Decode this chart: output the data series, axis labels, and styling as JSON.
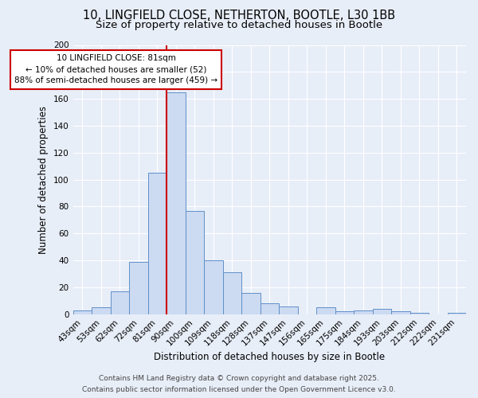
{
  "title_line1": "10, LINGFIELD CLOSE, NETHERTON, BOOTLE, L30 1BB",
  "title_line2": "Size of property relative to detached houses in Bootle",
  "xlabel": "Distribution of detached houses by size in Bootle",
  "ylabel": "Number of detached properties",
  "bar_labels": [
    "43sqm",
    "53sqm",
    "62sqm",
    "72sqm",
    "81sqm",
    "90sqm",
    "100sqm",
    "109sqm",
    "118sqm",
    "128sqm",
    "137sqm",
    "147sqm",
    "156sqm",
    "165sqm",
    "175sqm",
    "184sqm",
    "193sqm",
    "203sqm",
    "212sqm",
    "222sqm",
    "231sqm"
  ],
  "bar_values": [
    3,
    5,
    17,
    39,
    105,
    165,
    77,
    40,
    31,
    16,
    8,
    6,
    0,
    5,
    2,
    3,
    4,
    2,
    1,
    0,
    1
  ],
  "bar_color": "#ccdaf2",
  "bar_edge_color": "#6090c8",
  "red_line_index": 4.5,
  "annotation_title": "10 LINGFIELD CLOSE: 81sqm",
  "annotation_line1": "← 10% of detached houses are smaller (52)",
  "annotation_line2": "88% of semi-detached houses are larger (459) →",
  "annotation_box_facecolor": "#ffffff",
  "annotation_box_edgecolor": "#cc0000",
  "red_line_color": "#cc0000",
  "ylim": [
    0,
    200
  ],
  "yticks": [
    0,
    20,
    40,
    60,
    80,
    100,
    120,
    140,
    160,
    180,
    200
  ],
  "background_color": "#e8eef8",
  "footer_line1": "Contains HM Land Registry data © Crown copyright and database right 2025.",
  "footer_line2": "Contains public sector information licensed under the Open Government Licence v3.0.",
  "title_fontsize": 10.5,
  "subtitle_fontsize": 9.5,
  "axis_label_fontsize": 8.5,
  "tick_fontsize": 7.5,
  "annotation_fontsize": 7.5,
  "footer_fontsize": 6.5
}
